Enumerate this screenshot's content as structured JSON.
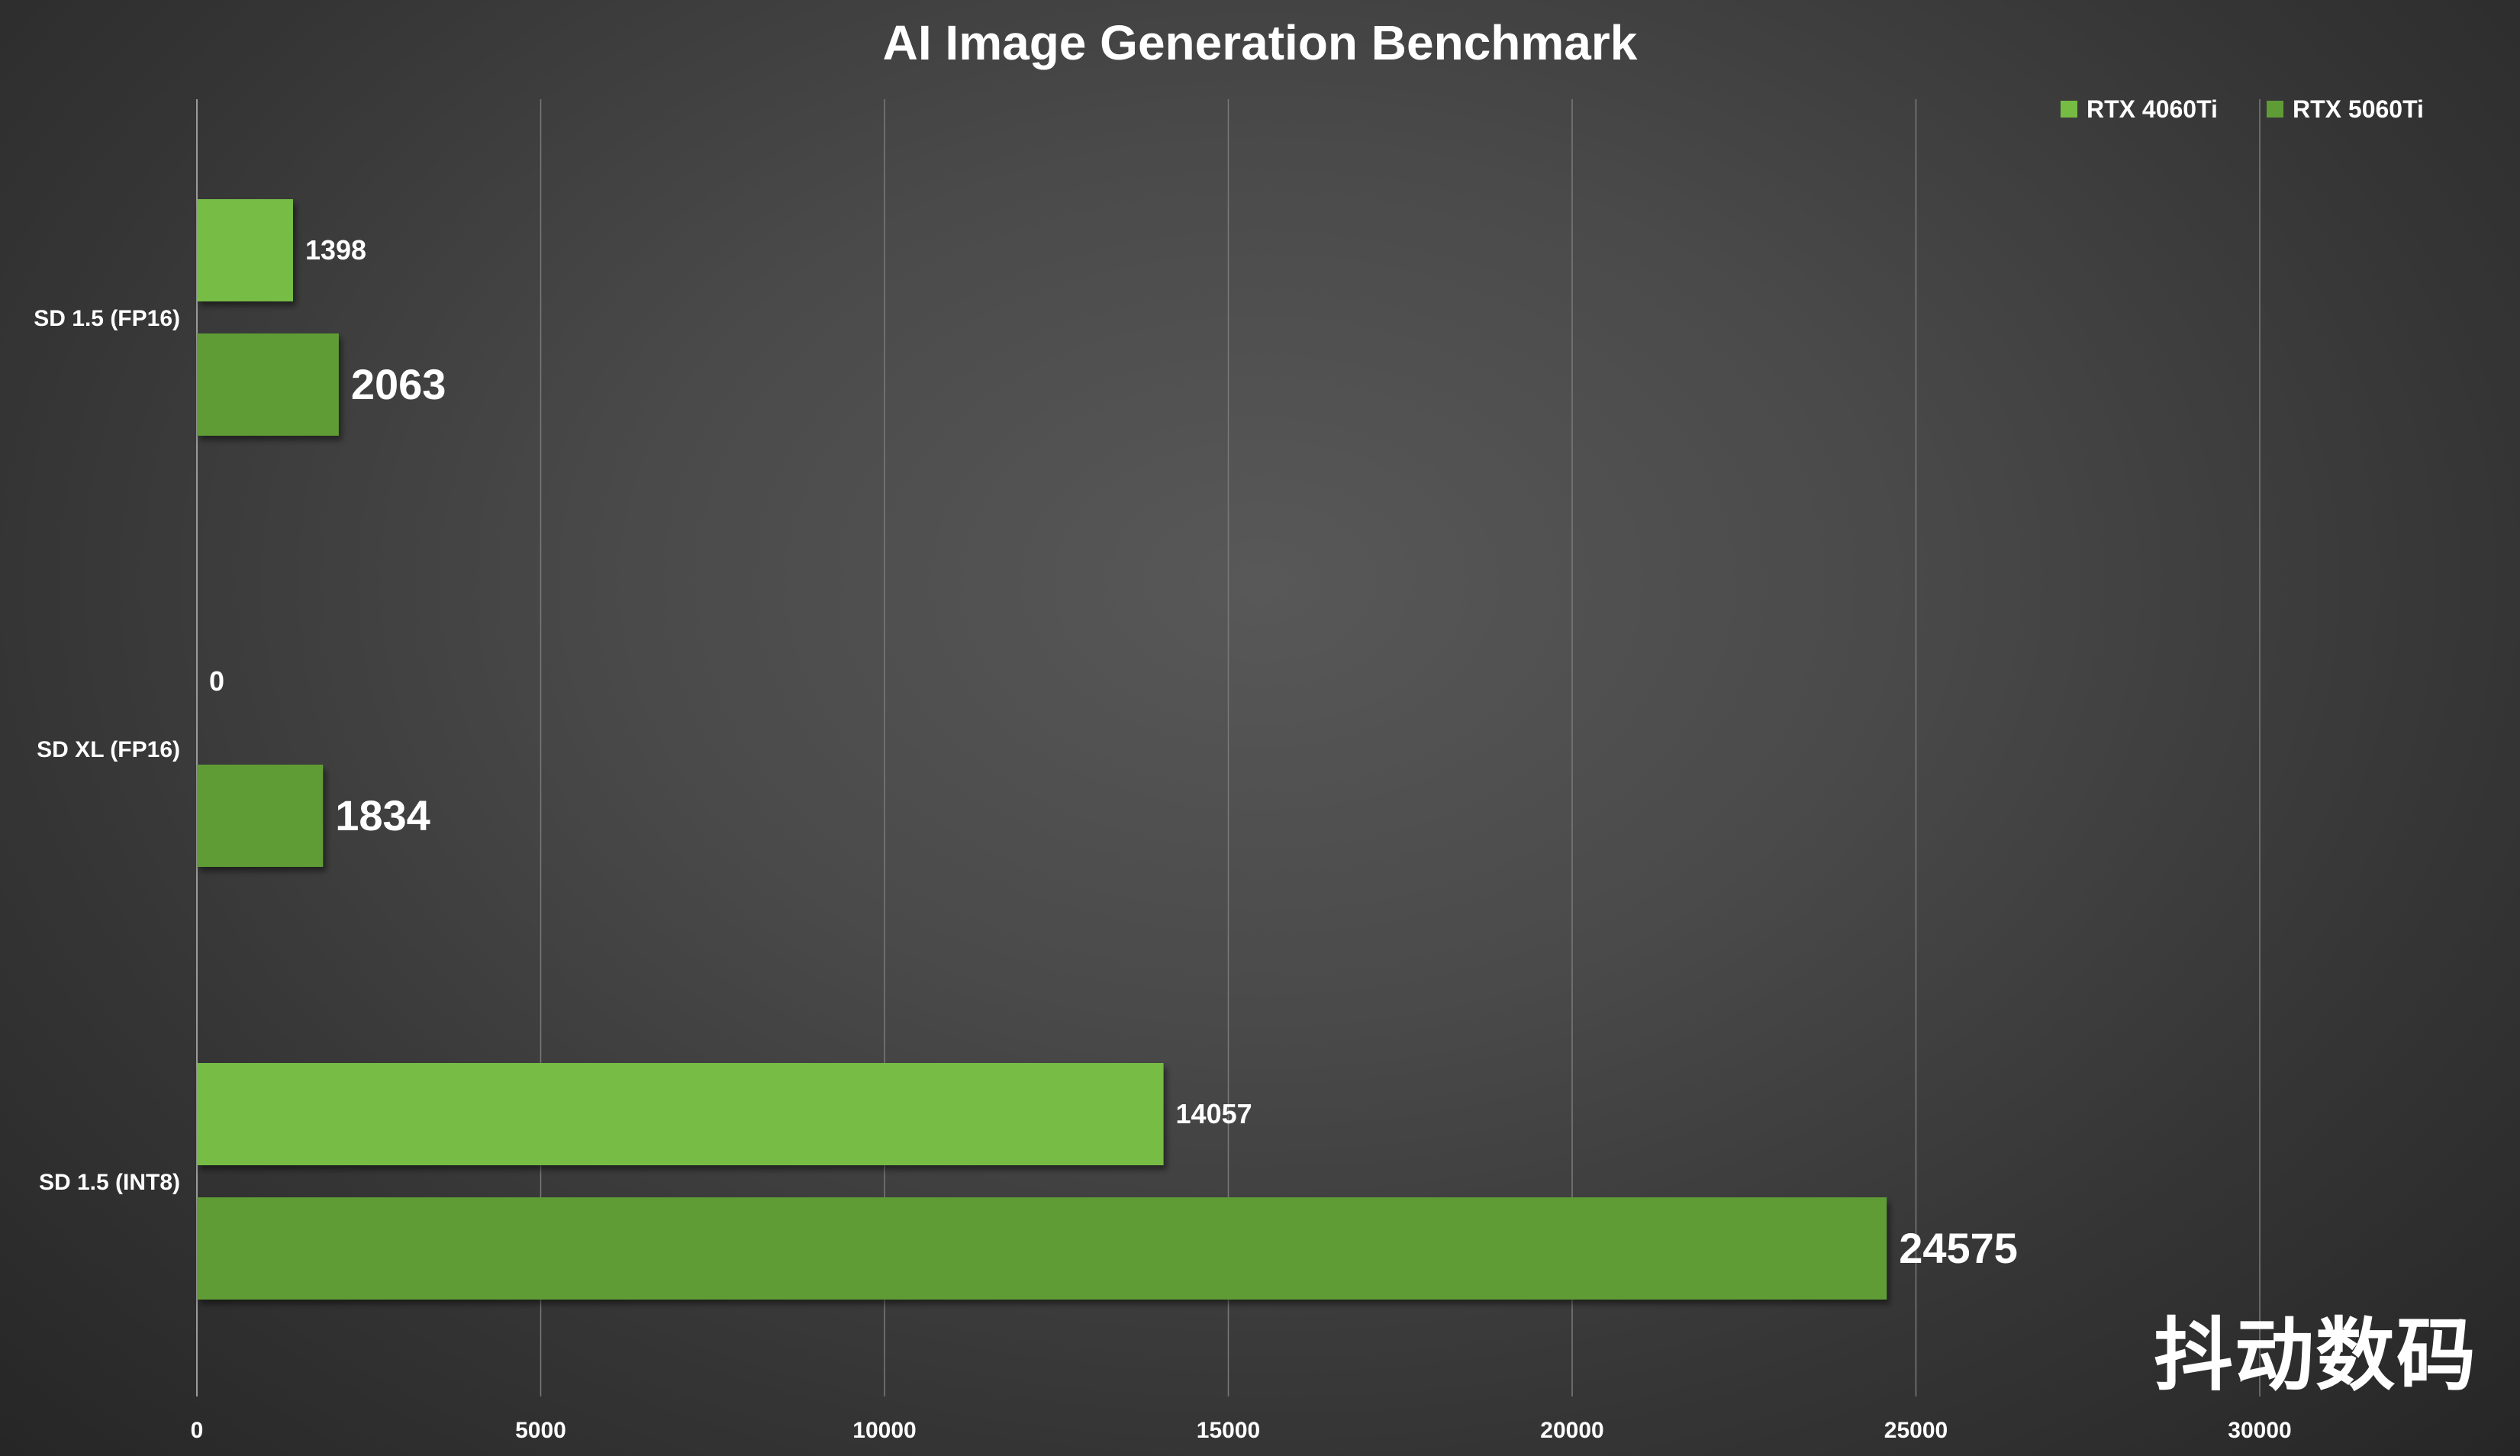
{
  "chart_data": {
    "type": "bar",
    "orientation": "horizontal",
    "title": "AI Image Generation Benchmark",
    "xlabel": "",
    "ylabel": "",
    "categories": [
      "SD 1.5  (FP16)",
      "SD XL (FP16)",
      "SD 1.5 (INT8)"
    ],
    "series": [
      {
        "name": "RTX 4060Ti",
        "values": [
          1398,
          0,
          14057
        ],
        "color": "#76bc44"
      },
      {
        "name": "RTX 5060Ti",
        "values": [
          2063,
          1834,
          24575
        ],
        "color": "#5f9c36"
      }
    ],
    "xlim": [
      0,
      30000
    ],
    "xticks": [
      0,
      5000,
      10000,
      15000,
      20000,
      25000,
      30000
    ],
    "grid": true,
    "legend_position": "top-right"
  },
  "watermark": "抖动数码"
}
